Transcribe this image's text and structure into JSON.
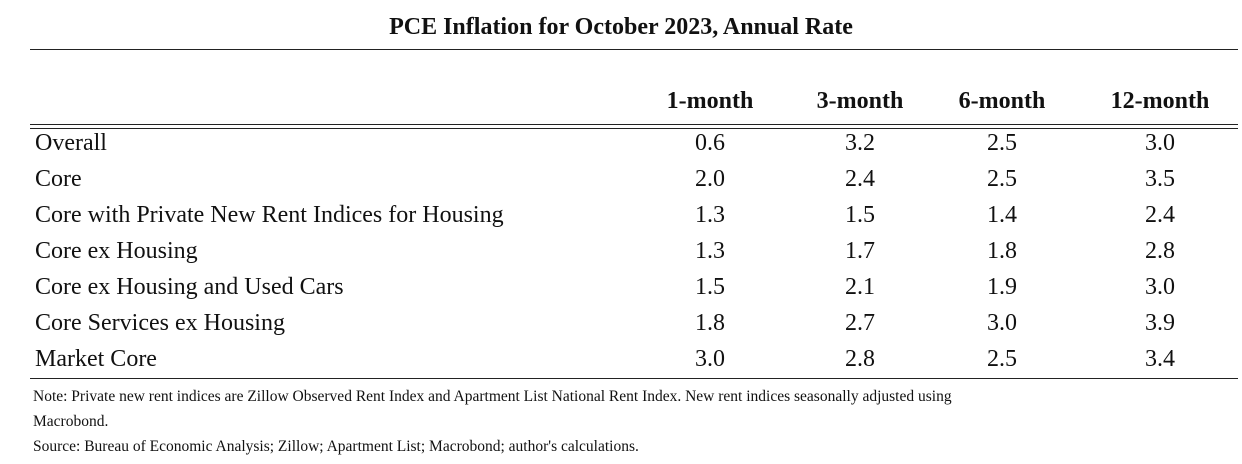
{
  "title": "PCE Inflation for October 2023, Annual Rate",
  "columns": [
    "1-month",
    "3-month",
    "6-month",
    "12-month"
  ],
  "rows": [
    {
      "label": "Overall",
      "values": [
        "0.6",
        "3.2",
        "2.5",
        "3.0"
      ]
    },
    {
      "label": "Core",
      "values": [
        "2.0",
        "2.4",
        "2.5",
        "3.5"
      ]
    },
    {
      "label": "Core with Private New Rent Indices for Housing",
      "values": [
        "1.3",
        "1.5",
        "1.4",
        "2.4"
      ]
    },
    {
      "label": "Core ex Housing",
      "values": [
        "1.3",
        "1.7",
        "1.8",
        "2.8"
      ]
    },
    {
      "label": "Core ex Housing and Used Cars",
      "values": [
        "1.5",
        "2.1",
        "1.9",
        "3.0"
      ]
    },
    {
      "label": "Core Services ex Housing",
      "values": [
        "1.8",
        "2.7",
        "3.0",
        "3.9"
      ]
    },
    {
      "label": "Market Core",
      "values": [
        "3.0",
        "2.8",
        "2.5",
        "3.4"
      ]
    }
  ],
  "notes": {
    "line1": "Note: Private new rent indices are Zillow Observed Rent Index and Apartment List National Rent Index. New rent indices seasonally adjusted using",
    "line2": "Macrobond.",
    "line3": "Source: Bureau of Economic Analysis; Zillow; Apartment List; Macrobond; author's calculations."
  }
}
